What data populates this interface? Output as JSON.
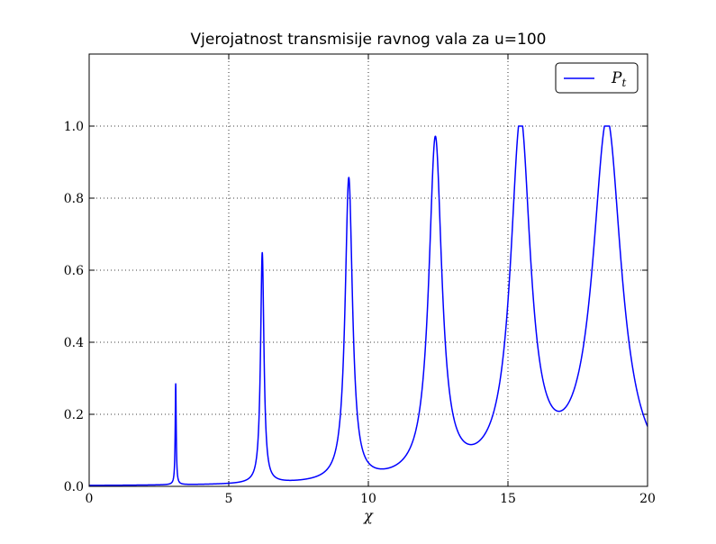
{
  "chart_data": {
    "type": "line",
    "title": "Vjerojatnost transmisije ravnog vala za u=100",
    "xlabel": "χ",
    "ylabel": "",
    "xlim": [
      0,
      20
    ],
    "ylim": [
      0,
      1.2
    ],
    "x_ticks": [
      0,
      5,
      10,
      15,
      20
    ],
    "x_tick_labels": [
      "0",
      "5",
      "10",
      "15",
      "20"
    ],
    "y_ticks": [
      0.0,
      0.2,
      0.4,
      0.6,
      0.8,
      1.0
    ],
    "y_tick_labels": [
      "0.0",
      "0.2",
      "0.4",
      "0.6",
      "0.8",
      "1.0"
    ],
    "grid": true,
    "legend_position": "top-right",
    "series": [
      {
        "name": "P_t",
        "legend_main": "P",
        "legend_sub": "t",
        "color": "#0000ff",
        "peaks": [
          {
            "x": 3.1,
            "y": 0.28
          },
          {
            "x": 6.2,
            "y": 0.64
          },
          {
            "x": 9.3,
            "y": 0.84
          },
          {
            "x": 12.4,
            "y": 0.94
          },
          {
            "x": 15.45,
            "y": 0.98
          },
          {
            "x": 18.55,
            "y": 1.0
          }
        ],
        "baseline": 0.0
      }
    ]
  }
}
